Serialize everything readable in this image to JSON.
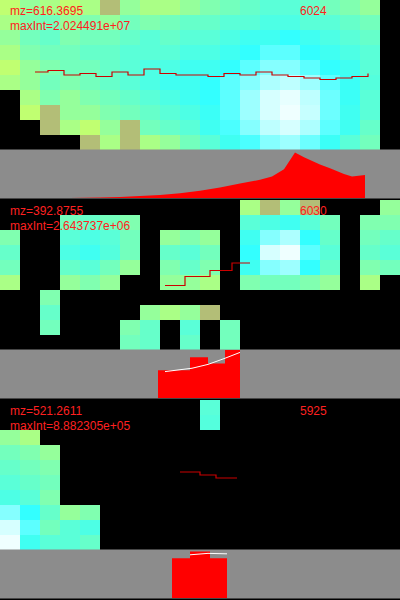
{
  "chart_data": [
    {
      "type": "heatmap",
      "title": "mz=616.3695",
      "subtitle": "maxInt=2.024491e+07",
      "annotation": 6024,
      "tick_labels": false,
      "zlim": [
        0,
        1
      ],
      "cells": [
        [
          0.3,
          0.4,
          0.35,
          0.3,
          0.35,
          0.1,
          0.4,
          0.35,
          0.35,
          0.4,
          0.45,
          0.5,
          0.55,
          0.6,
          0.6,
          0.55,
          0.5,
          0.45,
          0.4,
          null
        ],
        [
          0.35,
          0.45,
          0.5,
          0.4,
          0.45,
          0.4,
          0.5,
          0.45,
          0.5,
          0.55,
          0.55,
          0.6,
          0.6,
          0.65,
          0.65,
          0.6,
          0.6,
          0.55,
          0.5,
          null
        ],
        [
          0.4,
          0.5,
          0.55,
          0.45,
          0.5,
          0.5,
          0.55,
          0.6,
          0.55,
          0.6,
          0.6,
          0.65,
          0.7,
          0.7,
          0.75,
          0.7,
          0.65,
          0.6,
          0.55,
          null
        ],
        [
          0.35,
          0.45,
          0.5,
          0.5,
          0.55,
          0.55,
          0.6,
          0.6,
          0.6,
          0.65,
          0.65,
          0.7,
          0.75,
          0.8,
          0.8,
          0.75,
          0.7,
          0.65,
          0.6,
          null
        ],
        [
          0.3,
          0.4,
          0.45,
          0.5,
          0.5,
          0.55,
          0.6,
          0.65,
          0.65,
          0.7,
          0.7,
          0.75,
          0.8,
          0.85,
          0.85,
          0.8,
          0.75,
          0.7,
          0.6,
          null
        ],
        [
          0.35,
          0.4,
          0.5,
          0.45,
          0.5,
          0.55,
          0.6,
          0.65,
          0.7,
          0.7,
          0.75,
          0.8,
          0.85,
          0.9,
          0.92,
          0.88,
          0.8,
          0.72,
          0.62,
          null
        ],
        [
          null,
          0.35,
          0.45,
          0.4,
          0.45,
          0.5,
          0.55,
          0.6,
          0.65,
          0.7,
          0.75,
          0.8,
          0.88,
          0.95,
          0.97,
          0.92,
          0.82,
          0.72,
          0.6,
          null
        ],
        [
          null,
          0.3,
          0.1,
          0.4,
          0.4,
          0.45,
          0.5,
          0.55,
          0.6,
          0.65,
          0.72,
          0.8,
          0.88,
          0.95,
          0.98,
          0.93,
          0.82,
          0.7,
          0.6,
          null
        ],
        [
          null,
          null,
          0.1,
          0.35,
          0.3,
          0.4,
          0.1,
          0.5,
          0.55,
          0.6,
          0.7,
          0.78,
          0.85,
          0.92,
          0.95,
          0.9,
          0.8,
          0.7,
          0.55,
          null
        ],
        [
          null,
          null,
          null,
          null,
          0.1,
          0.35,
          0.1,
          0.35,
          0.4,
          0.5,
          0.6,
          0.7,
          0.78,
          0.85,
          0.88,
          0.82,
          0.72,
          0.6,
          0.5,
          null
        ]
      ],
      "overlay": {
        "type": "line",
        "color": "#cc0000",
        "line_style": "step",
        "xlim": [
          0,
          100
        ],
        "ylim": [
          0,
          100
        ],
        "x": [
          8.75,
          12,
          16,
          20,
          24,
          28,
          32,
          36,
          40,
          44,
          48,
          52,
          56,
          60,
          64,
          68,
          72,
          76,
          80,
          84,
          88,
          92
        ],
        "values": [
          52,
          53,
          50,
          51,
          49,
          52,
          50,
          54,
          51,
          50,
          50,
          49,
          51,
          50,
          52,
          50,
          49,
          48,
          47,
          48,
          49,
          51
        ]
      },
      "chromatogram": {
        "type": "area",
        "color": "#ff0000",
        "line_style": "solid",
        "xlim": [
          0,
          100
        ],
        "ylim": [
          0,
          1
        ],
        "x": [
          17.5,
          25,
          30,
          35,
          40,
          45,
          50,
          55,
          60,
          65,
          68,
          71,
          73.75,
          76,
          80,
          82.5,
          86,
          88,
          91.25
        ],
        "values": [
          0,
          0.01,
          0.02,
          0.04,
          0.06,
          0.1,
          0.15,
          0.22,
          0.3,
          0.38,
          0.45,
          0.6,
          0.95,
          0.85,
          0.7,
          0.62,
          0.5,
          0.45,
          0.48
        ]
      }
    },
    {
      "type": "heatmap",
      "title": "mz=392.8755",
      "subtitle": "maxInt=2.643737e+06",
      "annotation": 6030,
      "tick_labels": false,
      "zlim": [
        0,
        1
      ],
      "cells": [
        [
          null,
          null,
          null,
          null,
          null,
          null,
          null,
          null,
          null,
          null,
          null,
          null,
          0.35,
          0.1,
          0.4,
          0.1,
          null,
          null,
          null,
          0.4
        ],
        [
          null,
          null,
          null,
          0.5,
          0.55,
          0.5,
          0.45,
          null,
          null,
          null,
          null,
          null,
          0.6,
          0.65,
          0.7,
          0.6,
          0.5,
          null,
          0.45,
          0.45
        ],
        [
          0.45,
          null,
          null,
          0.6,
          0.65,
          0.6,
          0.5,
          null,
          0.4,
          0.45,
          0.4,
          null,
          0.7,
          0.85,
          0.9,
          0.75,
          0.55,
          null,
          0.5,
          0.55
        ],
        [
          0.55,
          null,
          null,
          0.65,
          0.7,
          0.62,
          0.5,
          null,
          0.55,
          0.6,
          0.5,
          null,
          0.75,
          0.95,
          0.98,
          0.8,
          0.6,
          null,
          0.55,
          0.6
        ],
        [
          0.5,
          null,
          null,
          0.55,
          0.6,
          0.5,
          0.4,
          null,
          0.45,
          0.55,
          0.45,
          null,
          0.7,
          0.85,
          0.88,
          0.75,
          0.55,
          null,
          0.45,
          0.5
        ],
        [
          0.35,
          null,
          null,
          0.4,
          0.45,
          0.4,
          null,
          null,
          0.4,
          0.4,
          0.35,
          null,
          0.45,
          0.5,
          0.5,
          0.45,
          0.4,
          null,
          0.35,
          null
        ],
        [
          null,
          null,
          0.45,
          null,
          null,
          null,
          null,
          null,
          null,
          null,
          null,
          null,
          null,
          null,
          null,
          null,
          null,
          null,
          null,
          null
        ],
        [
          null,
          null,
          0.55,
          null,
          null,
          null,
          null,
          0.4,
          0.35,
          0.4,
          0.1,
          null,
          null,
          null,
          null,
          null,
          null,
          null,
          null,
          null
        ],
        [
          null,
          null,
          0.5,
          null,
          null,
          null,
          0.45,
          0.55,
          null,
          0.6,
          null,
          0.5,
          null,
          null,
          null,
          null,
          null,
          null,
          null,
          null
        ],
        [
          null,
          null,
          null,
          null,
          null,
          null,
          0.5,
          0.55,
          null,
          0.55,
          null,
          0.5,
          null,
          null,
          null,
          null,
          null,
          null,
          null,
          null
        ]
      ],
      "overlay": {
        "type": "line",
        "color": "#cc0000",
        "line_style": "step",
        "xlim": [
          0,
          100
        ],
        "ylim": [
          0,
          100
        ],
        "x": [
          41.25,
          46.25,
          52.5,
          58,
          62.5
        ],
        "values": [
          43,
          49,
          53,
          58,
          58
        ]
      },
      "chromatogram": {
        "type": "area",
        "color": "#ff0000",
        "line_style": "step",
        "xlim": [
          0,
          100
        ],
        "ylim": [
          0,
          1
        ],
        "x": [
          39.5,
          47.5,
          52,
          56.25,
          60
        ],
        "values": [
          0.58,
          0.85,
          0.72,
          1.0,
          1.0
        ],
        "line": {
          "color": "#ffffff",
          "x": [
            41.25,
            48,
            52,
            56,
            60
          ],
          "values": [
            0.55,
            0.62,
            0.7,
            0.82,
            0.95
          ]
        }
      }
    },
    {
      "type": "heatmap",
      "title": "mz=521.2611",
      "subtitle": "maxInt=8.882305e+05",
      "annotation": 5925,
      "tick_labels": false,
      "zlim": [
        0,
        1
      ],
      "cells": [
        [
          null,
          null,
          null,
          null,
          null,
          null,
          null,
          null,
          null,
          null,
          0.6,
          null,
          null,
          null,
          null,
          null,
          null,
          null,
          null,
          null
        ],
        [
          null,
          null,
          null,
          null,
          null,
          null,
          null,
          null,
          null,
          null,
          0.62,
          null,
          null,
          null,
          null,
          null,
          null,
          null,
          null,
          null
        ],
        [
          0.4,
          0.35,
          null,
          null,
          null,
          null,
          null,
          null,
          null,
          null,
          null,
          null,
          null,
          null,
          null,
          null,
          null,
          null,
          null,
          null
        ],
        [
          0.5,
          0.45,
          0.4,
          null,
          null,
          null,
          null,
          null,
          null,
          null,
          null,
          null,
          null,
          null,
          null,
          null,
          null,
          null,
          null,
          null
        ],
        [
          0.55,
          0.5,
          0.45,
          null,
          null,
          null,
          null,
          null,
          null,
          null,
          null,
          null,
          null,
          null,
          null,
          null,
          null,
          null,
          null,
          null
        ],
        [
          0.6,
          0.55,
          0.5,
          null,
          null,
          null,
          null,
          null,
          null,
          null,
          null,
          null,
          null,
          null,
          null,
          null,
          null,
          null,
          null,
          null
        ],
        [
          0.65,
          0.6,
          0.45,
          null,
          null,
          null,
          null,
          null,
          null,
          null,
          null,
          null,
          null,
          null,
          null,
          null,
          null,
          null,
          null,
          null
        ],
        [
          0.85,
          0.75,
          0.55,
          0.4,
          0.45,
          null,
          null,
          null,
          null,
          null,
          null,
          null,
          null,
          null,
          null,
          null,
          null,
          null,
          null,
          null
        ],
        [
          0.95,
          0.8,
          0.5,
          0.6,
          0.65,
          null,
          null,
          null,
          null,
          null,
          null,
          null,
          null,
          null,
          null,
          null,
          null,
          null,
          null,
          null
        ],
        [
          0.98,
          0.7,
          0.6,
          0.6,
          0.55,
          null,
          null,
          null,
          null,
          null,
          null,
          null,
          null,
          null,
          null,
          null,
          null,
          null,
          null,
          null
        ]
      ],
      "overlay": {
        "type": "line",
        "color": "#cc0000",
        "line_style": "step",
        "xlim": [
          0,
          100
        ],
        "ylim": [
          0,
          100
        ],
        "x": [
          45,
          50,
          54,
          59.25
        ],
        "values": [
          52,
          50,
          48,
          48
        ]
      },
      "chromatogram": {
        "type": "area",
        "color": "#ff0000",
        "line_style": "step",
        "xlim": [
          0,
          100
        ],
        "ylim": [
          0,
          1
        ],
        "x": [
          43,
          47.5,
          52.5,
          56.75
        ],
        "values": [
          0.83,
          0.97,
          0.83,
          0.83
        ],
        "line": {
          "color": "#ffffff",
          "x": [
            47.5,
            52,
            56.75
          ],
          "values": [
            0.9,
            0.93,
            0.92
          ]
        }
      }
    }
  ]
}
